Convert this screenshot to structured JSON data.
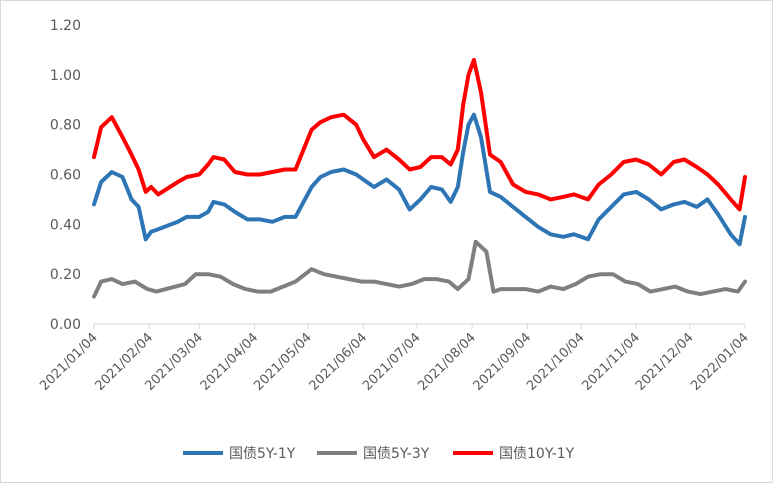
{
  "chart_data": {
    "type": "line",
    "title": "",
    "xlabel": "",
    "ylabel": "",
    "ylim": [
      0,
      1.2
    ],
    "y_ticks": [
      "0.00",
      "0.20",
      "0.40",
      "0.60",
      "0.80",
      "1.00",
      "1.20"
    ],
    "x_ticks": [
      "2021/01/04",
      "2021/02/04",
      "2021/03/04",
      "2021/04/04",
      "2021/05/04",
      "2021/06/04",
      "2021/07/04",
      "2021/08/04",
      "2021/09/04",
      "2021/10/04",
      "2021/11/04",
      "2021/12/04",
      "2022/01/04"
    ],
    "grid": false,
    "legend_position": "bottom",
    "series": [
      {
        "name": "国债5Y-1Y",
        "color": "#2e75b6",
        "x": [
          "2021/01/04",
          "2021/01/08",
          "2021/01/14",
          "2021/01/20",
          "2021/01/25",
          "2021/01/29",
          "2021/02/02",
          "2021/02/05",
          "2021/02/09",
          "2021/02/20",
          "2021/02/25",
          "2021/03/04",
          "2021/03/09",
          "2021/03/12",
          "2021/03/18",
          "2021/03/24",
          "2021/03/31",
          "2021/04/07",
          "2021/04/14",
          "2021/04/21",
          "2021/04/27",
          "2021/05/06",
          "2021/05/11",
          "2021/05/17",
          "2021/05/24",
          "2021/05/31",
          "2021/06/04",
          "2021/06/10",
          "2021/06/17",
          "2021/06/24",
          "2021/06/30",
          "2021/07/06",
          "2021/07/12",
          "2021/07/18",
          "2021/07/23",
          "2021/07/27",
          "2021/07/30",
          "2021/08/02",
          "2021/08/05",
          "2021/08/09",
          "2021/08/14",
          "2021/08/20",
          "2021/08/27",
          "2021/09/03",
          "2021/09/10",
          "2021/09/17",
          "2021/09/24",
          "2021/09/30",
          "2021/10/08",
          "2021/10/14",
          "2021/10/21",
          "2021/10/28",
          "2021/11/04",
          "2021/11/11",
          "2021/11/18",
          "2021/11/25",
          "2021/12/01",
          "2021/12/08",
          "2021/12/14",
          "2021/12/20",
          "2021/12/27",
          "2022/01/01",
          "2022/01/04"
        ],
        "values": [
          0.48,
          0.57,
          0.61,
          0.59,
          0.5,
          0.47,
          0.34,
          0.37,
          0.38,
          0.41,
          0.43,
          0.43,
          0.45,
          0.49,
          0.48,
          0.45,
          0.42,
          0.42,
          0.41,
          0.43,
          0.43,
          0.55,
          0.59,
          0.61,
          0.62,
          0.6,
          0.58,
          0.55,
          0.58,
          0.54,
          0.46,
          0.5,
          0.55,
          0.54,
          0.49,
          0.55,
          0.69,
          0.8,
          0.84,
          0.75,
          0.53,
          0.51,
          0.47,
          0.43,
          0.39,
          0.36,
          0.35,
          0.36,
          0.34,
          0.42,
          0.47,
          0.52,
          0.53,
          0.5,
          0.46,
          0.48,
          0.49,
          0.47,
          0.5,
          0.44,
          0.36,
          0.32,
          0.43
        ]
      },
      {
        "name": "国债5Y-3Y",
        "color": "#7f7f7f",
        "x": [
          "2021/01/04",
          "2021/01/08",
          "2021/01/14",
          "2021/01/20",
          "2021/01/27",
          "2021/02/03",
          "2021/02/08",
          "2021/02/24",
          "2021/03/02",
          "2021/03/09",
          "2021/03/16",
          "2021/03/23",
          "2021/03/30",
          "2021/04/06",
          "2021/04/13",
          "2021/04/20",
          "2021/04/27",
          "2021/05/06",
          "2021/05/13",
          "2021/05/20",
          "2021/05/27",
          "2021/06/03",
          "2021/06/10",
          "2021/06/17",
          "2021/06/24",
          "2021/07/01",
          "2021/07/08",
          "2021/07/15",
          "2021/07/22",
          "2021/07/27",
          "2021/08/02",
          "2021/08/06",
          "2021/08/12",
          "2021/08/16",
          "2021/08/20",
          "2021/08/27",
          "2021/09/03",
          "2021/09/10",
          "2021/09/17",
          "2021/09/24",
          "2021/10/01",
          "2021/10/08",
          "2021/10/15",
          "2021/10/22",
          "2021/10/29",
          "2021/11/05",
          "2021/11/12",
          "2021/11/19",
          "2021/11/26",
          "2021/12/03",
          "2021/12/10",
          "2021/12/17",
          "2021/12/24",
          "2021/12/31",
          "2022/01/04"
        ],
        "values": [
          0.11,
          0.17,
          0.18,
          0.16,
          0.17,
          0.14,
          0.13,
          0.16,
          0.2,
          0.2,
          0.19,
          0.16,
          0.14,
          0.13,
          0.13,
          0.15,
          0.17,
          0.22,
          0.2,
          0.19,
          0.18,
          0.17,
          0.17,
          0.16,
          0.15,
          0.16,
          0.18,
          0.18,
          0.17,
          0.14,
          0.18,
          0.33,
          0.29,
          0.13,
          0.14,
          0.14,
          0.14,
          0.13,
          0.15,
          0.14,
          0.16,
          0.19,
          0.2,
          0.2,
          0.17,
          0.16,
          0.13,
          0.14,
          0.15,
          0.13,
          0.12,
          0.13,
          0.14,
          0.13,
          0.17
        ]
      },
      {
        "name": "国债10Y-1Y",
        "color": "#ff0000",
        "x": [
          "2021/01/04",
          "2021/01/08",
          "2021/01/14",
          "2021/01/20",
          "2021/01/25",
          "2021/01/29",
          "2021/02/02",
          "2021/02/05",
          "2021/02/09",
          "2021/02/20",
          "2021/02/25",
          "2021/03/04",
          "2021/03/09",
          "2021/03/12",
          "2021/03/18",
          "2021/03/24",
          "2021/03/31",
          "2021/04/07",
          "2021/04/14",
          "2021/04/21",
          "2021/04/27",
          "2021/05/06",
          "2021/05/11",
          "2021/05/17",
          "2021/05/24",
          "2021/05/31",
          "2021/06/04",
          "2021/06/10",
          "2021/06/17",
          "2021/06/24",
          "2021/06/30",
          "2021/07/06",
          "2021/07/12",
          "2021/07/18",
          "2021/07/23",
          "2021/07/27",
          "2021/07/30",
          "2021/08/02",
          "2021/08/05",
          "2021/08/09",
          "2021/08/14",
          "2021/08/20",
          "2021/08/27",
          "2021/09/03",
          "2021/09/10",
          "2021/09/17",
          "2021/09/24",
          "2021/09/30",
          "2021/10/08",
          "2021/10/14",
          "2021/10/21",
          "2021/10/28",
          "2021/11/04",
          "2021/11/11",
          "2021/11/18",
          "2021/11/25",
          "2021/12/01",
          "2021/12/08",
          "2021/12/14",
          "2021/12/20",
          "2021/12/27",
          "2022/01/01",
          "2022/01/04"
        ],
        "values": [
          0.67,
          0.79,
          0.83,
          0.75,
          0.68,
          0.62,
          0.53,
          0.55,
          0.52,
          0.57,
          0.59,
          0.6,
          0.64,
          0.67,
          0.66,
          0.61,
          0.6,
          0.6,
          0.61,
          0.62,
          0.62,
          0.78,
          0.81,
          0.83,
          0.84,
          0.8,
          0.74,
          0.67,
          0.7,
          0.66,
          0.62,
          0.63,
          0.67,
          0.67,
          0.64,
          0.7,
          0.88,
          1.0,
          1.06,
          0.93,
          0.68,
          0.65,
          0.56,
          0.53,
          0.52,
          0.5,
          0.51,
          0.52,
          0.5,
          0.56,
          0.6,
          0.65,
          0.66,
          0.64,
          0.6,
          0.65,
          0.66,
          0.63,
          0.6,
          0.56,
          0.5,
          0.46,
          0.59
        ]
      }
    ]
  }
}
